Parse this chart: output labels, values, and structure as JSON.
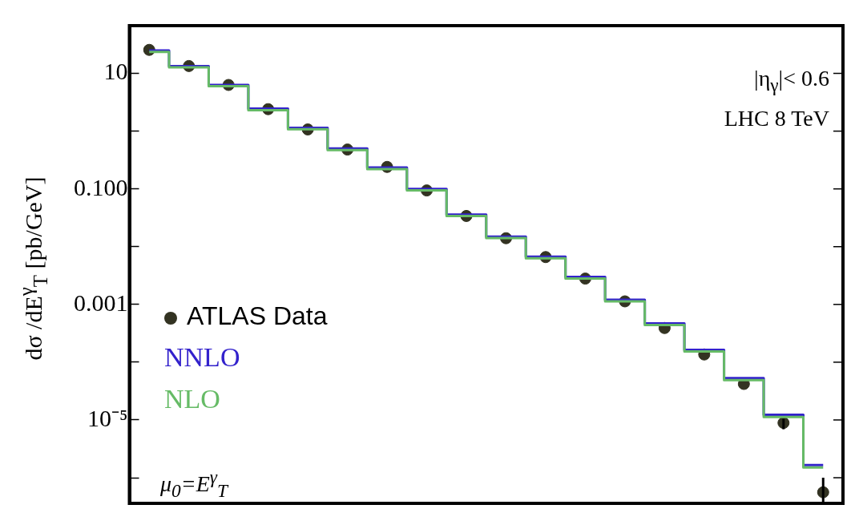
{
  "chart_data": {
    "type": "step",
    "ylabel": "dσ /dE$^{γ}$$_{T}$ [pb/GeV]",
    "annotations": [
      "|η$_{γ}$|< 0.6",
      "LHC 8 TeV",
      "μ$_{0}$=E$^{γ}$$_{T}$"
    ],
    "categories": [
      null,
      null,
      null,
      null,
      null,
      null,
      null,
      null,
      null,
      null,
      null,
      null,
      null,
      null,
      null,
      null,
      null,
      null
    ],
    "log": "y",
    "ylim": [
      3.6e-07,
      67
    ],
    "yticks": [
      {
        "value": 10,
        "label": "10"
      },
      {
        "value": 1,
        "label": null
      },
      {
        "value": 0.1,
        "label": "0.100"
      },
      {
        "value": 0.01,
        "label": null
      },
      {
        "value": 0.001,
        "label": "0.001"
      },
      {
        "value": 0.0001,
        "label": null
      },
      {
        "value": 1e-05,
        "label": "10⁻⁵"
      },
      {
        "value": 1e-06,
        "label": null
      }
    ],
    "grid": false,
    "legend": "left",
    "tick_labels": "y",
    "series": [
      {
        "name": "NLO",
        "type": "step",
        "color": "#66bb66",
        "values": [
          23.5,
          12.7,
          6.0,
          2.3,
          1.08,
          0.47,
          0.22,
          0.094,
          0.034,
          0.0141,
          0.0063,
          0.0028,
          0.00113,
          0.00044,
          0.000153,
          4.9e-05,
          1.13e-05,
          1.5e-06
        ]
      },
      {
        "name": "NNLO",
        "type": "step",
        "color": "#3322cc",
        "values": [
          24.8,
          13.4,
          6.3,
          2.45,
          1.14,
          0.5,
          0.234,
          0.1,
          0.0358,
          0.0149,
          0.0067,
          0.003,
          0.0012,
          0.00047,
          0.000163,
          5.3e-05,
          1.23e-05,
          1.65e-06
        ]
      },
      {
        "name": "ATLAS Data",
        "type": "scatter",
        "marker": "circle",
        "color": "#333322",
        "values": [
          25.5,
          13.4,
          6.3,
          2.4,
          1.07,
          0.48,
          0.24,
          0.094,
          0.034,
          0.014,
          0.0066,
          0.0028,
          0.00113,
          0.00039,
          0.000136,
          4.2e-05,
          8.9e-06,
          5.6e-07
        ],
        "errors": [
          null,
          null,
          null,
          null,
          null,
          null,
          null,
          null,
          null,
          null,
          null,
          null,
          null,
          null,
          null,
          null,
          [
            6.9e-06,
            1.05e-05
          ],
          [
            3.6e-07,
            1e-06
          ]
        ]
      }
    ]
  }
}
